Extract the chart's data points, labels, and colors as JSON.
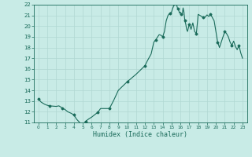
{
  "xlabel": "Humidex (Indice chaleur)",
  "ylabel": "",
  "line_color": "#1a6b5a",
  "marker_color": "#1a6b5a",
  "bg_color": "#c8ebe6",
  "grid_color": "#b0d8d2",
  "axis_color": "#1a6b5a",
  "ylim_min": 11,
  "ylim_max": 22,
  "xlim_min": -0.5,
  "xlim_max": 23.5,
  "yticks": [
    11,
    12,
    13,
    14,
    15,
    16,
    17,
    18,
    19,
    20,
    21,
    22
  ],
  "xticks": [
    0,
    1,
    2,
    3,
    4,
    5,
    6,
    7,
    8,
    9,
    10,
    11,
    12,
    13,
    14,
    15,
    16,
    17,
    18,
    19,
    20,
    21,
    22,
    23
  ],
  "detailed_x": [
    0,
    0.3,
    0.7,
    1.0,
    1.3,
    1.7,
    2.0,
    2.3,
    2.7,
    3.0,
    3.3,
    3.7,
    4.0,
    4.3,
    4.7,
    5.0,
    5.3,
    5.7,
    6.0,
    6.3,
    6.7,
    7.0,
    7.3,
    7.7,
    8.0,
    8.5,
    9.0,
    9.5,
    10.0,
    10.5,
    11.0,
    11.5,
    12.0,
    12.3,
    12.7,
    13.0,
    13.2,
    13.4,
    13.6,
    13.8,
    14.0,
    14.2,
    14.4,
    14.6,
    14.8,
    15.0,
    15.1,
    15.2,
    15.3,
    15.4,
    15.5,
    15.6,
    15.7,
    15.8,
    15.9,
    16.0,
    16.1,
    16.2,
    16.3,
    16.4,
    16.5,
    16.6,
    16.7,
    16.8,
    17.0,
    17.2,
    17.4,
    17.6,
    17.8,
    18.0,
    18.2,
    18.4,
    18.6,
    18.8,
    19.0,
    19.2,
    19.4,
    19.6,
    19.8,
    20.0,
    20.2,
    20.4,
    20.6,
    20.8,
    21.0,
    21.2,
    21.4,
    21.6,
    21.8,
    22.0,
    22.2,
    22.4,
    22.6,
    22.8,
    23.0
  ],
  "detailed_y": [
    13.2,
    12.9,
    12.7,
    12.6,
    12.55,
    12.52,
    12.5,
    12.55,
    12.35,
    12.2,
    12.0,
    11.85,
    11.7,
    11.3,
    10.95,
    10.8,
    11.1,
    11.35,
    11.5,
    11.7,
    11.95,
    12.3,
    12.3,
    12.3,
    12.3,
    13.1,
    14.0,
    14.4,
    14.8,
    15.15,
    15.5,
    15.9,
    16.3,
    16.8,
    17.4,
    18.5,
    18.7,
    18.95,
    19.2,
    19.15,
    19.0,
    19.5,
    20.5,
    21.0,
    21.2,
    21.3,
    21.6,
    21.8,
    22.1,
    22.3,
    22.2,
    21.9,
    21.6,
    21.5,
    21.2,
    21.3,
    21.15,
    21.0,
    21.7,
    21.3,
    20.5,
    20.2,
    19.7,
    19.5,
    20.2,
    19.7,
    20.3,
    19.5,
    19.3,
    21.1,
    21.0,
    20.9,
    20.8,
    20.85,
    21.05,
    20.9,
    21.1,
    20.8,
    20.5,
    19.5,
    18.5,
    18.0,
    18.5,
    19.0,
    19.5,
    19.3,
    19.0,
    18.5,
    18.2,
    18.6,
    18.1,
    17.8,
    18.2,
    17.5,
    17.0
  ]
}
